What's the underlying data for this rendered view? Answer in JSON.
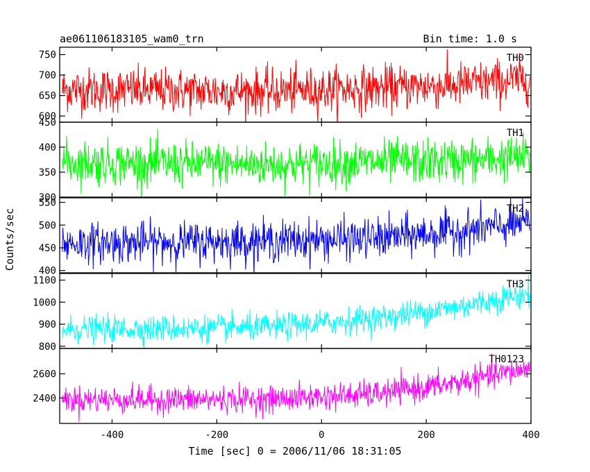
{
  "header": {
    "title": "ae061106183105_wam0_trn",
    "bin_time": "Bin time: 1.0 s"
  },
  "axes": {
    "xlabel": "Time [sec] 0 = 2006/11/06 18:31:05",
    "ylabel": "Counts/sec"
  },
  "chart_data": {
    "type": "line",
    "title": "ae061106183105_wam0_trn",
    "subtitle": "Bin time: 1.0 s",
    "xlabel": "Time [sec] 0 = 2006/11/06 18:31:05",
    "ylabel": "Counts/sec",
    "xlim": [
      -500,
      400
    ],
    "x_ticks": [
      -400,
      -200,
      0,
      200,
      400
    ],
    "x_step": 1,
    "grid": false,
    "panels": [
      {
        "name": "TH0",
        "color": "#ff0000",
        "ylim": [
          585,
          768
        ],
        "y_ticks": [
          600,
          650,
          700,
          750
        ],
        "trend": [
          [
            -500,
            665
          ],
          [
            -300,
            662
          ],
          [
            -100,
            660
          ],
          [
            100,
            668
          ],
          [
            250,
            675
          ],
          [
            400,
            690
          ]
        ],
        "noise_sd": 27
      },
      {
        "name": "TH1",
        "color": "#00ff00",
        "ylim": [
          300,
          450
        ],
        "y_ticks": [
          300,
          350,
          400,
          450
        ],
        "trend": [
          [
            -500,
            370
          ],
          [
            -300,
            367
          ],
          [
            -100,
            365
          ],
          [
            100,
            370
          ],
          [
            250,
            372
          ],
          [
            400,
            380
          ]
        ],
        "noise_sd": 22
      },
      {
        "name": "TH2",
        "color": "#0000ff",
        "ylim": [
          395,
          560
        ],
        "y_ticks": [
          400,
          450,
          500,
          550
        ],
        "trend": [
          [
            -500,
            460
          ],
          [
            -300,
            462
          ],
          [
            -100,
            465
          ],
          [
            100,
            470
          ],
          [
            250,
            485
          ],
          [
            400,
            505
          ]
        ],
        "noise_sd": 22
      },
      {
        "name": "TH3",
        "color": "#00ffff",
        "ylim": [
          790,
          1130
        ],
        "y_ticks": [
          800,
          900,
          1000,
          1100
        ],
        "trend": [
          [
            -500,
            875
          ],
          [
            -300,
            880
          ],
          [
            -100,
            885
          ],
          [
            100,
            925
          ],
          [
            250,
            975
          ],
          [
            400,
            1040
          ]
        ],
        "noise_sd": 30
      },
      {
        "name": "TH0123",
        "color": "#ff00ff",
        "ylim": [
          2190,
          2810
        ],
        "y_ticks": [
          2400,
          2600
        ],
        "trend": [
          [
            -500,
            2390
          ],
          [
            -300,
            2385
          ],
          [
            -100,
            2390
          ],
          [
            100,
            2430
          ],
          [
            250,
            2520
          ],
          [
            400,
            2650
          ]
        ],
        "noise_sd": 55
      }
    ]
  }
}
